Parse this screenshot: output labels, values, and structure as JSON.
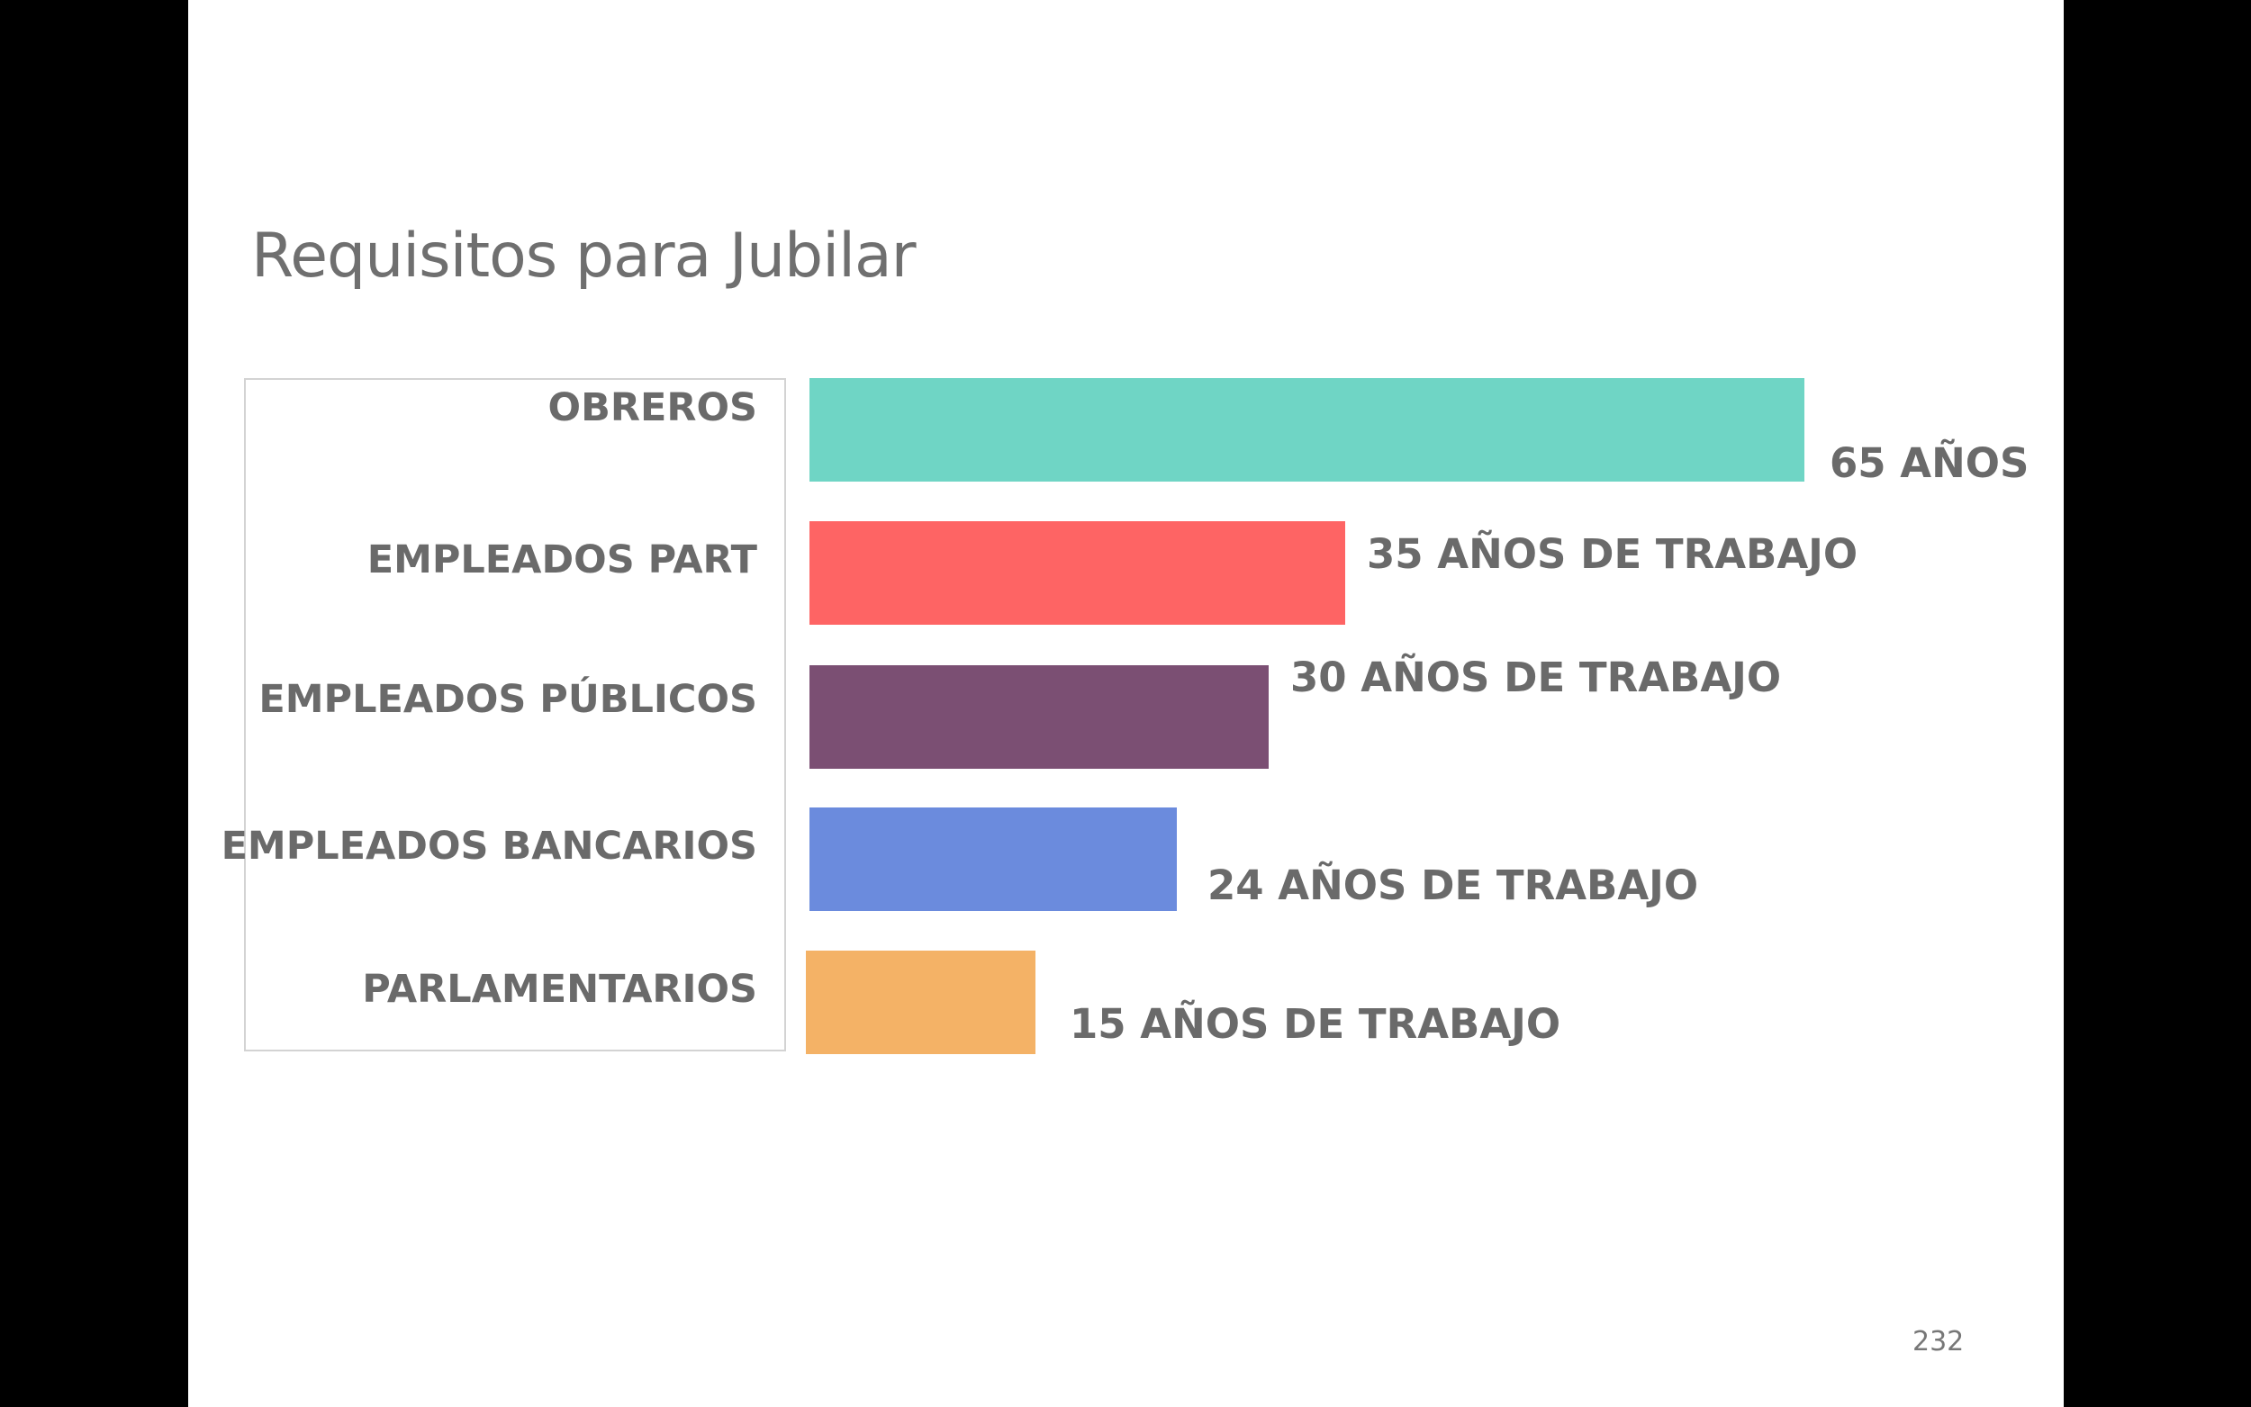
{
  "slide": {
    "title": "Requisitos para Jubilar",
    "page_number": "232"
  },
  "chart_data": {
    "type": "bar",
    "orientation": "horizontal",
    "title": "Requisitos para Jubilar",
    "categories": [
      "OBREROS",
      "EMPLEADOS PART",
      "EMPLEADOS PÚBLICOS",
      "EMPLEADOS BANCARIOS",
      "PARLAMENTARIOS"
    ],
    "values": [
      65,
      35,
      30,
      24,
      15
    ],
    "value_labels": [
      "65 AÑOS",
      "35 AÑOS DE TRABAJO",
      "30 AÑOS DE TRABAJO",
      "24 AÑOS DE TRABAJO",
      "15 AÑOS DE TRABAJO"
    ],
    "colors": [
      "#6fd5c5",
      "#fe6464",
      "#7b4f73",
      "#6b8bdd",
      "#f4b266"
    ],
    "grid": false,
    "legend": "none"
  }
}
